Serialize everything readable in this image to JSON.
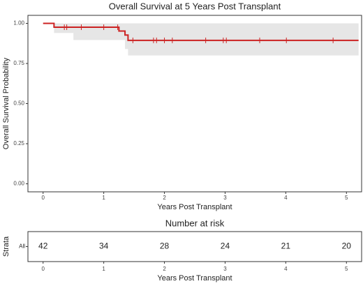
{
  "chart_data": [
    {
      "type": "survival",
      "title": "Overall Survival at 5 Years Post Transplant",
      "x_label": "Years Post Transplant",
      "y_label": "Overall Survival Probability",
      "color": "#cc2222",
      "band_color": "#e6e6e6",
      "x": [
        0,
        0.18,
        1.25,
        1.35,
        1.4,
        5.2
      ],
      "survival": [
        1,
        0.976,
        0.952,
        0.927,
        0.894,
        0.894
      ],
      "band": {
        "x": [
          0.18,
          0.5,
          1.35,
          1.4,
          5.2
        ],
        "lower": [
          0.94,
          0.896,
          0.84,
          0.8,
          0.8
        ],
        "upper": [
          1,
          1,
          1,
          1,
          1
        ]
      },
      "censor_x": [
        0.35,
        0.39,
        0.63,
        1.0,
        1.23,
        1.48,
        1.82,
        1.87,
        2.0,
        2.13,
        2.68,
        2.97,
        3.02,
        3.57,
        4.01,
        4.78
      ],
      "censor_y": [
        0.976,
        0.976,
        0.976,
        0.976,
        0.976,
        0.894,
        0.894,
        0.894,
        0.894,
        0.894,
        0.894,
        0.894,
        0.894,
        0.894,
        0.894,
        0.894
      ],
      "xlim": [
        -0.25,
        5.25
      ],
      "xticks": [
        0,
        1,
        2,
        3,
        4,
        5
      ],
      "ylim": [
        -0.05,
        1.05
      ],
      "yticks": [
        {
          "value": 0,
          "label": "0.00"
        },
        {
          "value": 0.25,
          "label": "0.25"
        },
        {
          "value": 0.5,
          "label": "0.50"
        },
        {
          "value": 0.75,
          "label": "0.75"
        },
        {
          "value": 1,
          "label": "1.00"
        }
      ]
    },
    {
      "type": "risk_table",
      "title": "Number at risk",
      "x_label": "Years Post Transplant",
      "y_label": "Strata",
      "strata": "All",
      "color": "#cc2222",
      "x": [
        0,
        1,
        2,
        3,
        4,
        5
      ],
      "values": [
        42,
        34,
        28,
        24,
        21,
        20
      ],
      "xlim": [
        -0.25,
        5.25
      ],
      "xticks": [
        0,
        1,
        2,
        3,
        4,
        5
      ]
    }
  ]
}
